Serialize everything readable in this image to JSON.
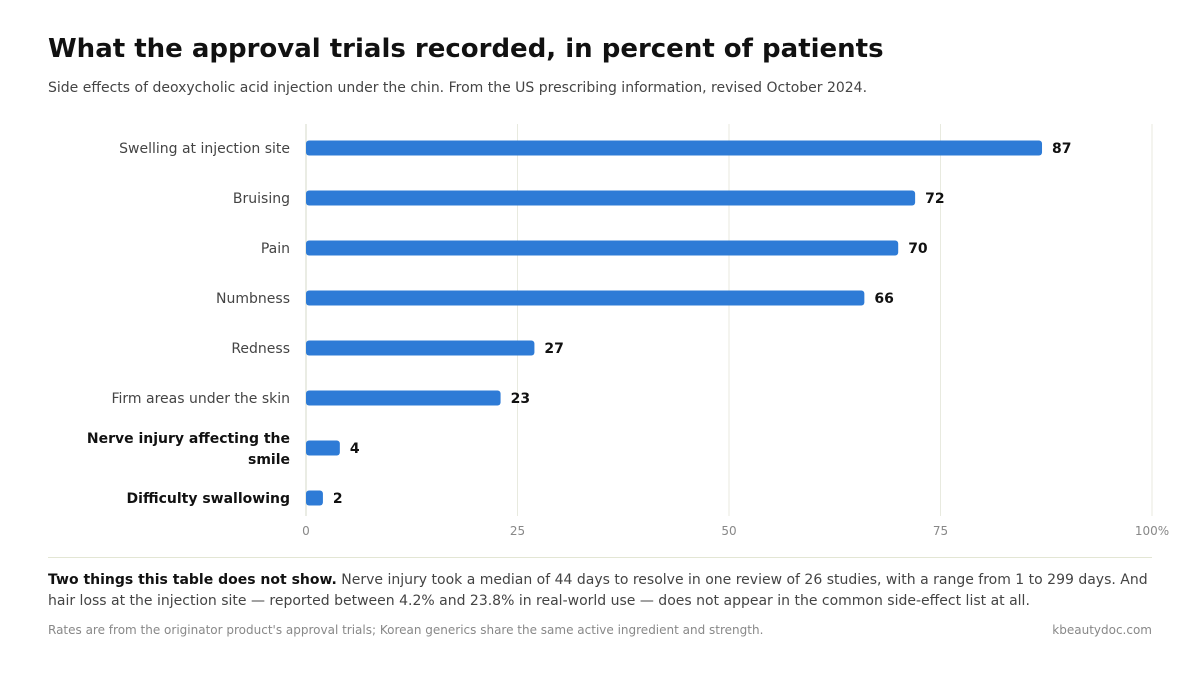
{
  "title": "What the approval trials recorded, in percent of patients",
  "subtitle": "Side effects of deoxycholic acid injection under the chin. From the US prescribing information, revised October 2024.",
  "note": {
    "lead": "Two things this table does not show.",
    "body": " Nerve injury took a median of 44 days to resolve in one review of 26 studies, with a range from 1 to 299 days. And hair loss at the injection site — reported between 4.2% and 23.8% in real-world use — does not appear in the common side-effect list at all."
  },
  "footer": {
    "source": "Rates are from the originator product's approval trials; Korean generics share the same active ingredient and strength.",
    "site": "kbeautydoc.com"
  },
  "chart_data": {
    "type": "bar",
    "orientation": "horizontal",
    "categories": [
      "Swelling at injection site",
      "Bruising",
      "Pain",
      "Numbness",
      "Redness",
      "Firm areas under the skin",
      "Nerve injury affecting the smile",
      "Difficulty swallowing"
    ],
    "category_lines": [
      [
        "Swelling at injection site"
      ],
      [
        "Bruising"
      ],
      [
        "Pain"
      ],
      [
        "Numbness"
      ],
      [
        "Redness"
      ],
      [
        "Firm areas under the skin"
      ],
      [
        "Nerve injury affecting the",
        "smile"
      ],
      [
        "Difficulty swallowing"
      ]
    ],
    "emphasized": [
      false,
      false,
      false,
      false,
      false,
      false,
      true,
      true
    ],
    "values": [
      87,
      72,
      70,
      66,
      27,
      23,
      4,
      2
    ],
    "xlim": [
      0,
      100
    ],
    "xticks": [
      "0",
      "25",
      "50",
      "75",
      "100%"
    ],
    "grid": true,
    "bar_color": "#2e7bd6"
  }
}
